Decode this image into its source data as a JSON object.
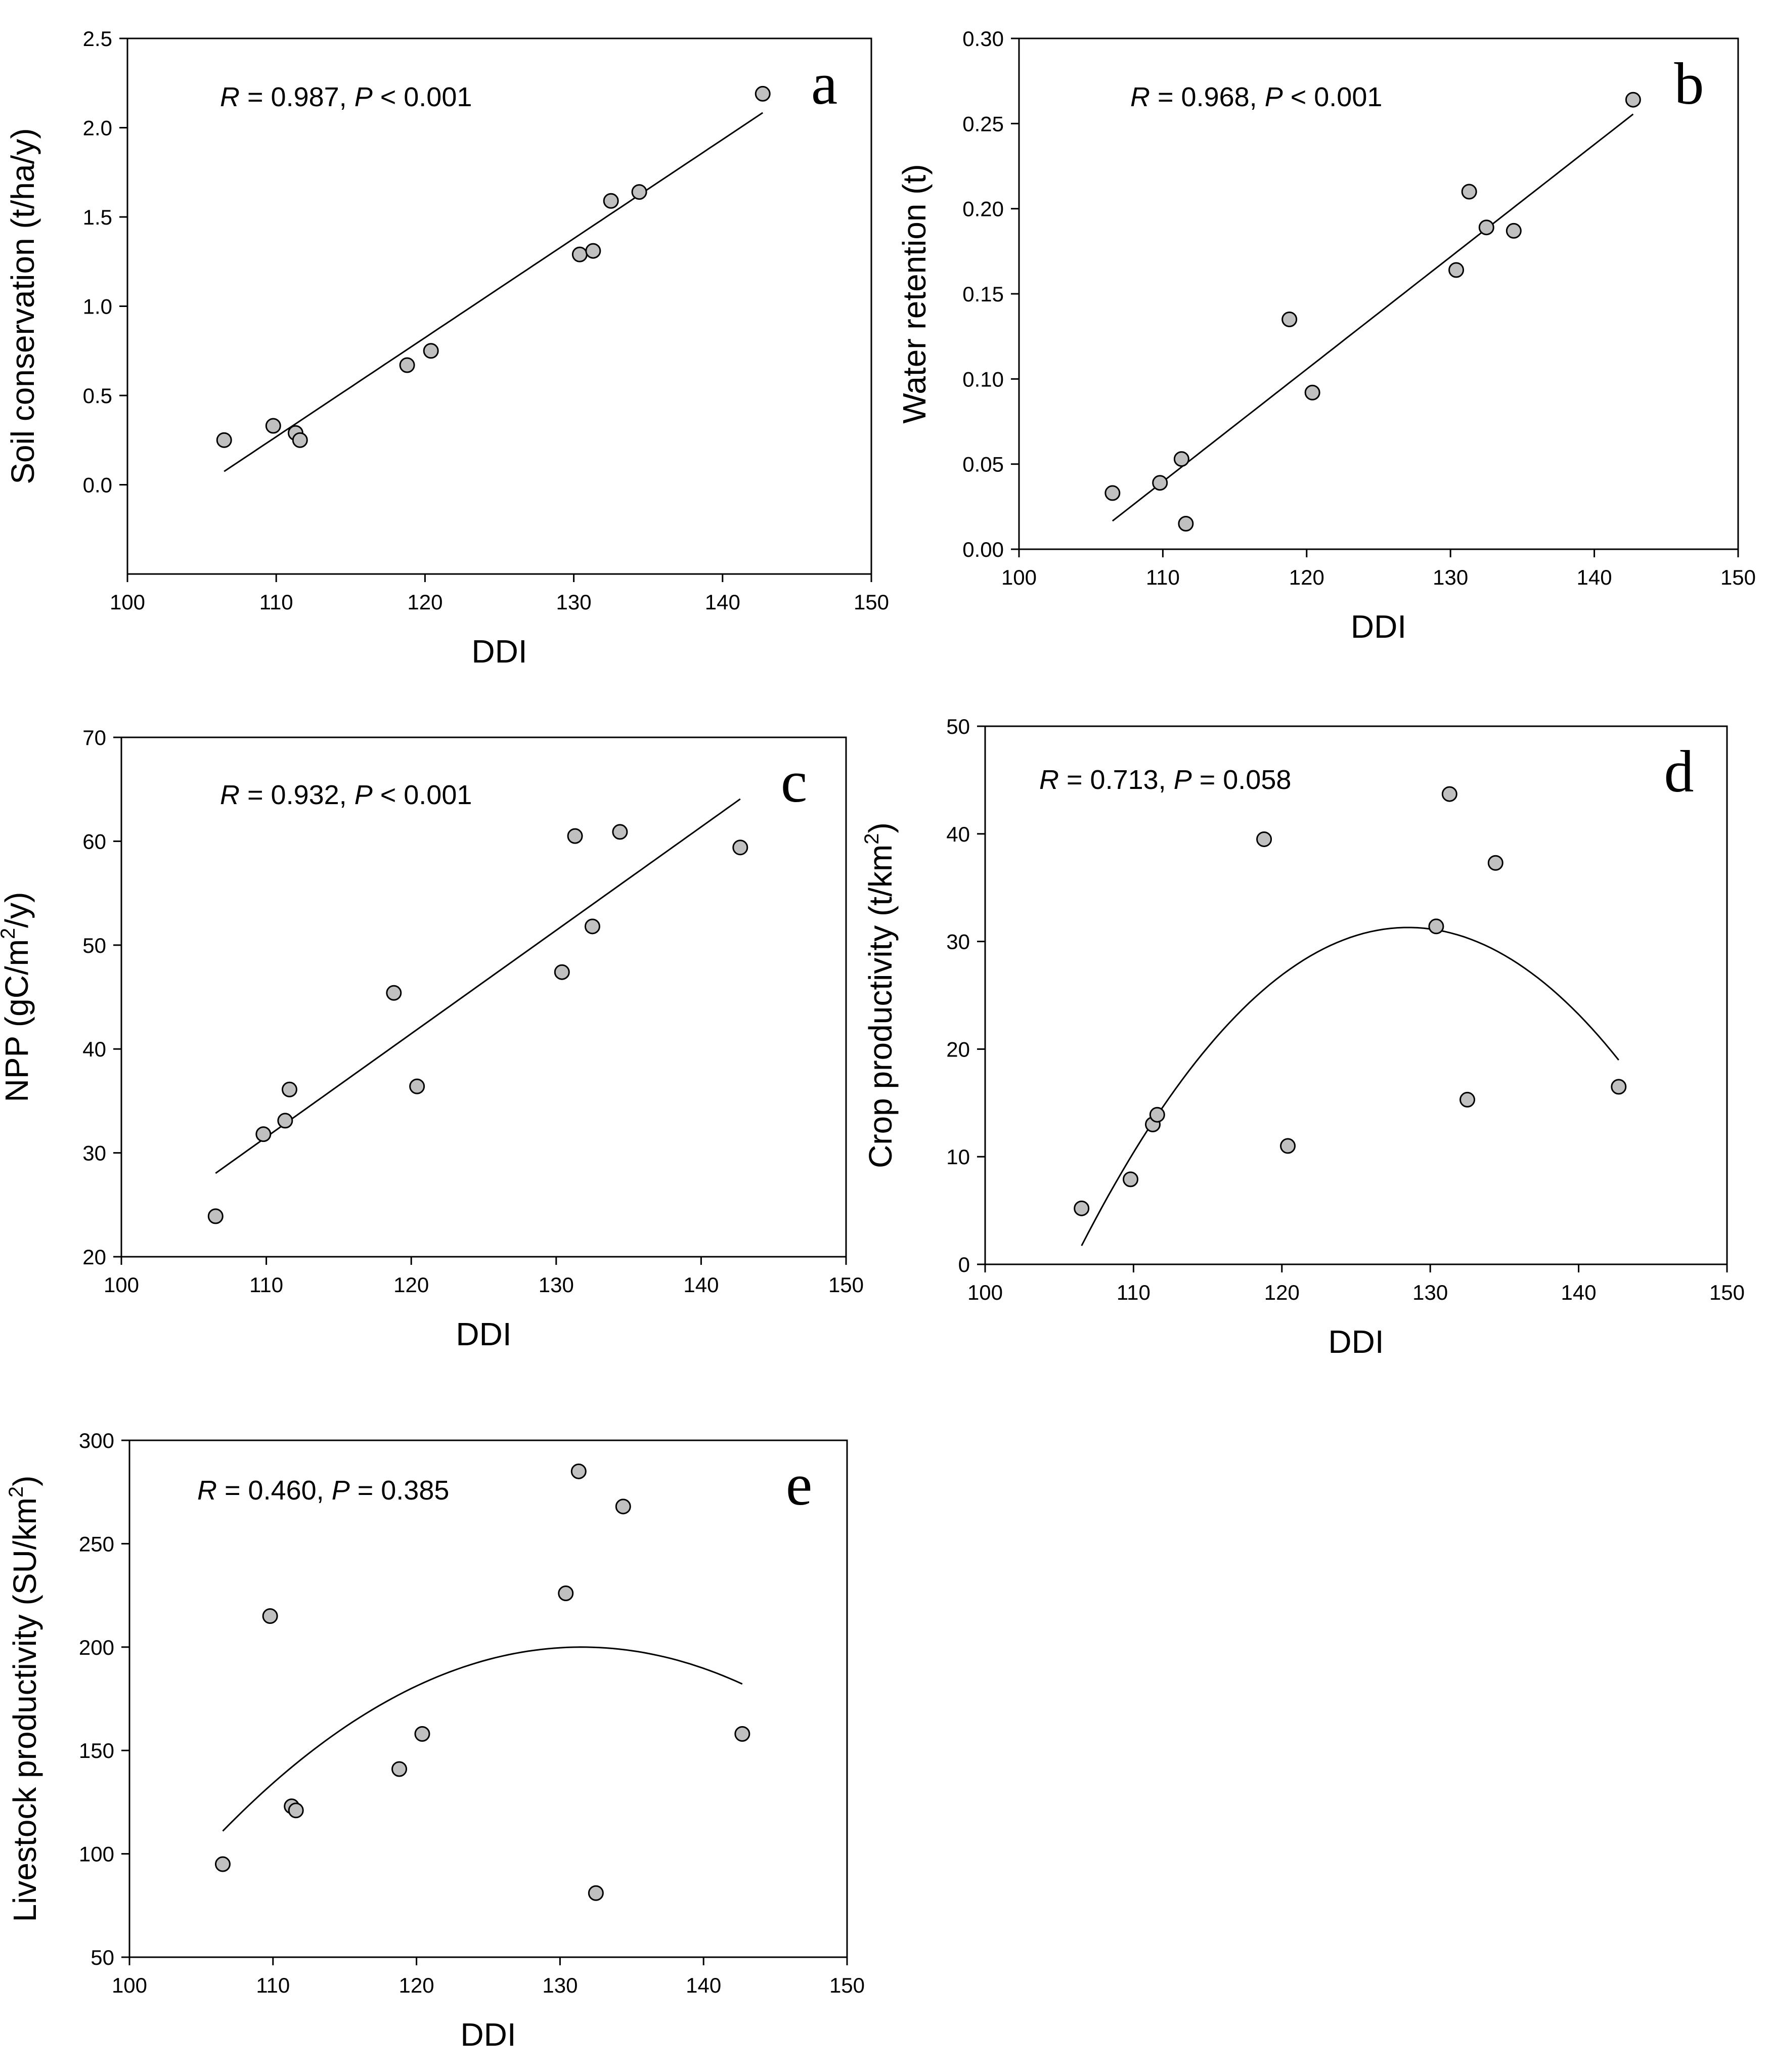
{
  "chart_data": [
    {
      "type": "scatter",
      "panel": "a",
      "xlabel": "DDI",
      "ylabel": "Soil conservation (t/ha/y)",
      "xlim": [
        100,
        150
      ],
      "ylim": [
        -0.5,
        2.5
      ],
      "xticks": [
        100,
        110,
        120,
        130,
        140,
        150
      ],
      "yticks": [
        0.0,
        0.5,
        1.0,
        1.5,
        2.0,
        2.5
      ],
      "ytick_labels": [
        "0.0",
        "0.5",
        "1.0",
        "1.5",
        "2.0",
        "2.5"
      ],
      "stat": {
        "r_label": "R",
        "r_text": " = 0.987, ",
        "p_label": "P",
        "p_text": " < 0.001"
      },
      "fit": {
        "type": "linear",
        "x_range": [
          106.5,
          142.7
        ],
        "coef": [
          -5.836,
          0.0555
        ]
      },
      "points": [
        {
          "x": 106.5,
          "y": 0.25
        },
        {
          "x": 109.8,
          "y": 0.33
        },
        {
          "x": 111.3,
          "y": 0.29
        },
        {
          "x": 111.6,
          "y": 0.25
        },
        {
          "x": 118.8,
          "y": 0.67
        },
        {
          "x": 120.4,
          "y": 0.75
        },
        {
          "x": 130.4,
          "y": 1.29
        },
        {
          "x": 131.3,
          "y": 1.31
        },
        {
          "x": 132.5,
          "y": 1.59
        },
        {
          "x": 134.4,
          "y": 1.64
        },
        {
          "x": 142.7,
          "y": 2.19
        }
      ]
    },
    {
      "type": "scatter",
      "panel": "b",
      "xlabel": "DDI",
      "ylabel": "Water retention (t)",
      "xlim": [
        100,
        150
      ],
      "ylim": [
        0,
        0.3
      ],
      "xticks": [
        100,
        110,
        120,
        130,
        140,
        150
      ],
      "yticks": [
        0,
        0.05,
        0.1,
        0.15,
        0.2,
        0.25,
        0.3
      ],
      "ytick_labels": [
        "0.00",
        "0.05",
        "0.10",
        "0.15",
        "0.20",
        "0.25",
        "0.30"
      ],
      "stat": {
        "r_label": "R",
        "r_text": " = 0.968, ",
        "p_label": "P",
        "p_text": " < 0.001"
      },
      "fit": {
        "type": "linear",
        "x_range": [
          106.5,
          142.7
        ],
        "coef": [
          -0.6863,
          0.0066
        ]
      },
      "points": [
        {
          "x": 106.5,
          "y": 0.033
        },
        {
          "x": 109.8,
          "y": 0.039
        },
        {
          "x": 111.3,
          "y": 0.053
        },
        {
          "x": 111.6,
          "y": 0.015
        },
        {
          "x": 118.8,
          "y": 0.135
        },
        {
          "x": 120.4,
          "y": 0.092
        },
        {
          "x": 130.4,
          "y": 0.164
        },
        {
          "x": 131.3,
          "y": 0.21
        },
        {
          "x": 132.5,
          "y": 0.189
        },
        {
          "x": 134.4,
          "y": 0.187
        },
        {
          "x": 142.7,
          "y": 0.264
        }
      ]
    },
    {
      "type": "scatter",
      "panel": "c",
      "xlabel": "DDI",
      "ylabel": "NPP (gC/m²/y)",
      "ylabel_parts": {
        "pre": "NPP (gC/m",
        "sup": "2",
        "post": "/y)"
      },
      "xlim": [
        100,
        150
      ],
      "ylim": [
        20,
        70
      ],
      "xticks": [
        100,
        110,
        120,
        130,
        140,
        150
      ],
      "yticks": [
        20,
        30,
        40,
        50,
        60,
        70
      ],
      "ytick_labels": [
        "20",
        "30",
        "40",
        "50",
        "60",
        "70"
      ],
      "stat": {
        "r_label": "R",
        "r_text": " = 0.932, ",
        "p_label": "P",
        "p_text": " < 0.001"
      },
      "fit": {
        "type": "linear",
        "x_range": [
          106.5,
          142.7
        ],
        "coef": [
          -77.95,
          0.9952
        ]
      },
      "points": [
        {
          "x": 106.5,
          "y": 23.9
        },
        {
          "x": 109.8,
          "y": 31.8
        },
        {
          "x": 111.3,
          "y": 33.1
        },
        {
          "x": 111.6,
          "y": 36.1
        },
        {
          "x": 118.8,
          "y": 45.4
        },
        {
          "x": 120.4,
          "y": 36.4
        },
        {
          "x": 130.4,
          "y": 47.4
        },
        {
          "x": 131.3,
          "y": 60.5
        },
        {
          "x": 132.5,
          "y": 51.8
        },
        {
          "x": 134.4,
          "y": 60.9
        },
        {
          "x": 142.7,
          "y": 59.4
        }
      ]
    },
    {
      "type": "scatter",
      "panel": "d",
      "xlabel": "DDI",
      "ylabel": "Crop productivity (t/km²)",
      "ylabel_parts": {
        "pre": "Crop productivity (t/km",
        "sup": "2",
        "post": ")"
      },
      "xlim": [
        100,
        150
      ],
      "ylim": [
        0,
        50
      ],
      "xticks": [
        100,
        110,
        120,
        130,
        140,
        150
      ],
      "yticks": [
        0,
        10,
        20,
        30,
        40,
        50
      ],
      "ytick_labels": [
        "0",
        "10",
        "20",
        "30",
        "40",
        "50"
      ],
      "stat": {
        "r_label": "R",
        "r_text": " = 0.713, ",
        "p_label": "P",
        "p_text": " = 0.058"
      },
      "fit": {
        "type": "quadratic",
        "x_range": [
          106.5,
          142.7
        ],
        "vertex": [
          128.5,
          31.3
        ],
        "a": -0.0611
      },
      "points": [
        {
          "x": 106.5,
          "y": 5.2
        },
        {
          "x": 109.8,
          "y": 7.9
        },
        {
          "x": 111.3,
          "y": 13.0
        },
        {
          "x": 111.6,
          "y": 13.9
        },
        {
          "x": 118.8,
          "y": 39.5
        },
        {
          "x": 120.4,
          "y": 11.0
        },
        {
          "x": 130.4,
          "y": 31.4
        },
        {
          "x": 131.3,
          "y": 43.7
        },
        {
          "x": 132.5,
          "y": 15.3
        },
        {
          "x": 134.4,
          "y": 37.3
        },
        {
          "x": 142.7,
          "y": 16.5
        }
      ]
    },
    {
      "type": "scatter",
      "panel": "e",
      "xlabel": "DDI",
      "ylabel": "Livestock productivity (SU/km²)",
      "ylabel_parts": {
        "pre": "Livestock productivity (SU/km",
        "sup": "2",
        "post": ")"
      },
      "xlim": [
        100,
        150
      ],
      "ylim": [
        50,
        300
      ],
      "xticks": [
        100,
        110,
        120,
        130,
        140,
        150
      ],
      "yticks": [
        50,
        100,
        150,
        200,
        250,
        300
      ],
      "ytick_labels": [
        "50",
        "100",
        "150",
        "200",
        "250",
        "300"
      ],
      "stat": {
        "r_label": "R",
        "r_text": " = 0.460, ",
        "p_label": "P",
        "p_text": " = 0.385"
      },
      "fit": {
        "type": "quadratic",
        "x_range": [
          106.5,
          142.7
        ],
        "vertex": [
          131.5,
          200
        ],
        "a": -0.1424
      },
      "points": [
        {
          "x": 106.5,
          "y": 95
        },
        {
          "x": 109.8,
          "y": 215
        },
        {
          "x": 111.3,
          "y": 123
        },
        {
          "x": 111.6,
          "y": 121
        },
        {
          "x": 118.8,
          "y": 141
        },
        {
          "x": 120.4,
          "y": 158
        },
        {
          "x": 130.4,
          "y": 226
        },
        {
          "x": 131.3,
          "y": 285
        },
        {
          "x": 132.5,
          "y": 81
        },
        {
          "x": 134.4,
          "y": 268
        },
        {
          "x": 142.7,
          "y": 158
        }
      ]
    }
  ]
}
